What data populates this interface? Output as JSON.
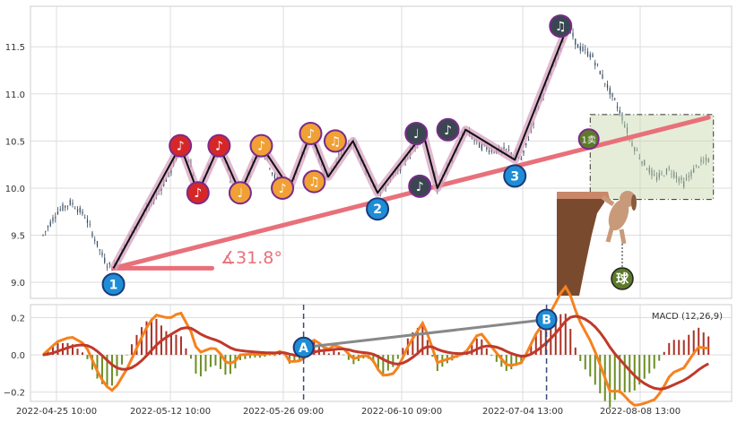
{
  "chart_data": [
    {
      "type": "candlestick",
      "x_tick_labels": [
        "2022-04-25 10:00",
        "2022-05-12 10:00",
        "2022-05-26 09:00",
        "2022-06-10 09:00",
        "2022-07-04 13:00",
        "2022-08-08 13:00"
      ],
      "y_tick_labels": [
        "9.0",
        "9.5",
        "10.0",
        "10.5",
        "11.0",
        "11.5"
      ],
      "ylim": [
        8.83,
        11.93
      ],
      "grid": true,
      "price_path": [
        [
          0,
          9.5
        ],
        [
          2,
          9.75
        ],
        [
          4,
          9.85
        ],
        [
          6,
          9.7
        ],
        [
          8,
          9.35
        ],
        [
          9,
          9.2
        ],
        [
          10,
          9.15
        ],
        [
          12,
          9.45
        ],
        [
          15,
          9.8
        ],
        [
          18,
          10.15
        ],
        [
          19.5,
          10.45
        ],
        [
          21,
          10.25
        ],
        [
          22,
          9.95
        ],
        [
          23.5,
          10.2
        ],
        [
          25,
          10.45
        ],
        [
          26.5,
          10.15
        ],
        [
          28,
          9.95
        ],
        [
          30,
          10.3
        ],
        [
          31,
          10.45
        ],
        [
          33,
          10.1
        ],
        [
          35,
          10.0
        ],
        [
          37,
          10.35
        ],
        [
          38,
          10.58
        ],
        [
          39.5,
          10.25
        ],
        [
          40.5,
          10.12
        ],
        [
          42.5,
          10.4
        ],
        [
          44,
          10.5
        ],
        [
          46,
          10.15
        ],
        [
          48,
          9.95
        ],
        [
          51,
          10.25
        ],
        [
          54,
          10.58
        ],
        [
          56,
          10.0
        ],
        [
          58,
          10.3
        ],
        [
          60,
          10.62
        ],
        [
          62,
          10.45
        ],
        [
          64,
          10.4
        ],
        [
          66,
          10.4
        ],
        [
          68,
          10.3
        ],
        [
          70,
          10.8
        ],
        [
          73,
          11.4
        ],
        [
          74.5,
          11.72
        ],
        [
          76,
          11.5
        ],
        [
          78,
          11.4
        ],
        [
          80,
          11.1
        ],
        [
          82,
          10.8
        ],
        [
          83.5,
          10.5
        ],
        [
          85,
          10.3
        ],
        [
          87,
          10.1
        ],
        [
          89,
          10.2
        ],
        [
          91,
          10.05
        ],
        [
          93,
          10.25
        ],
        [
          94.5,
          10.3
        ]
      ],
      "wave_points": [
        {
          "label": "1",
          "x": 10,
          "y": 9.15
        },
        {
          "label": "2",
          "x": 47.5,
          "y": 9.95
        },
        {
          "label": "3",
          "x": 67,
          "y": 10.3
        }
      ],
      "zigzag_major": [
        [
          10,
          9.15
        ],
        [
          19.5,
          10.45
        ],
        [
          22,
          9.95
        ],
        [
          25,
          10.45
        ],
        [
          28,
          9.95
        ],
        [
          31,
          10.45
        ],
        [
          35,
          10.0
        ],
        [
          38,
          10.58
        ],
        [
          40.5,
          10.12
        ],
        [
          44,
          10.5
        ],
        [
          47.5,
          9.95
        ],
        [
          54,
          10.58
        ],
        [
          56,
          10.0
        ],
        [
          60,
          10.62
        ],
        [
          67,
          10.3
        ],
        [
          74.5,
          11.72
        ]
      ],
      "trend_line": {
        "start": [
          10,
          9.15
        ],
        "end": [
          94.5,
          10.75
        ]
      },
      "angle_label": "∡31.8°",
      "note_markers": [
        {
          "glyph": "♪",
          "x": 19.5,
          "y": 10.45,
          "color": "#d62728"
        },
        {
          "glyph": "♪",
          "x": 22,
          "y": 9.95,
          "color": "#d62728"
        },
        {
          "glyph": "♪",
          "x": 25,
          "y": 10.45,
          "color": "#d62728"
        },
        {
          "glyph": "♩",
          "x": 28,
          "y": 9.95,
          "color": "#f0a035"
        },
        {
          "glyph": "♪",
          "x": 31,
          "y": 10.45,
          "color": "#f0a035"
        },
        {
          "glyph": "♪",
          "x": 34,
          "y": 10.0,
          "color": "#f0a035"
        },
        {
          "glyph": "♪",
          "x": 38,
          "y": 10.58,
          "color": "#f0a035"
        },
        {
          "glyph": "♫",
          "x": 38.5,
          "y": 10.07,
          "color": "#f0a035"
        },
        {
          "glyph": "♫",
          "x": 41.5,
          "y": 10.5,
          "color": "#f0a035"
        },
        {
          "glyph": "♩",
          "x": 53,
          "y": 10.58,
          "color": "#3a4750"
        },
        {
          "glyph": "♪",
          "x": 53.5,
          "y": 10.02,
          "color": "#3a4750"
        },
        {
          "glyph": "♪",
          "x": 57.5,
          "y": 10.62,
          "color": "#3a4750"
        },
        {
          "glyph": "♫",
          "x": 73.5,
          "y": 11.72,
          "color": "#3a4750"
        }
      ],
      "sell_marker": {
        "label": "1卖",
        "x": 77.5,
        "y": 10.52
      },
      "ball_label": "球"
    },
    {
      "type": "line",
      "title": "MACD (12,26,9)",
      "y_tick_labels": [
        "0.2",
        "0.0",
        "−0.2"
      ],
      "ylim": [
        -0.25,
        0.27
      ],
      "grid": true,
      "divergence_markers": [
        {
          "label": "A",
          "x": 37,
          "y": 0.04
        },
        {
          "label": "B",
          "x": 71.5,
          "y": 0.19
        }
      ]
    }
  ]
}
